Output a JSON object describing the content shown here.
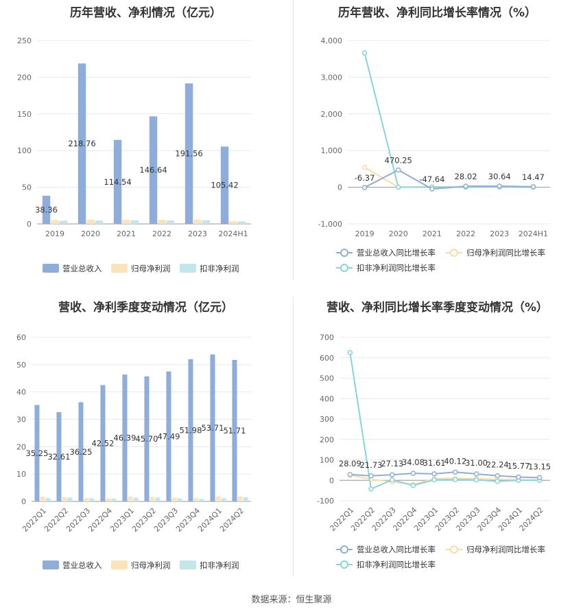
{
  "source_label": "数据来源：恒生聚源",
  "colors": {
    "revenue": "#8EADDB",
    "net_profit": "#FCE3B8",
    "deducted_profit": "#C1E7EC",
    "rev_growth_line": "#8EADDB",
    "np_growth_line": "#FCDCA5",
    "dp_growth_line": "#85D5DD"
  },
  "chart_data": [
    {
      "type": "bar",
      "title": "历年营收、净利情况（亿元）",
      "categories": [
        "2019",
        "2020",
        "2021",
        "2022",
        "2023",
        "2024H1"
      ],
      "ylim": [
        0,
        250
      ],
      "yticks": [
        "0",
        "50",
        "100",
        "150",
        "200",
        "250"
      ],
      "grid": true,
      "legend_position": "bottom",
      "series": [
        {
          "name": "营业总收入",
          "values": [
            38.36,
            218.76,
            114.54,
            146.64,
            191.56,
            105.42
          ],
          "labels": [
            "38.36",
            "218.76",
            "114.54",
            "146.64",
            "191.56",
            "105.42"
          ]
        },
        {
          "name": "归母净利润",
          "values": [
            5.2,
            5.8,
            5.6,
            5.7,
            5.9,
            3.8
          ]
        },
        {
          "name": "扣非净利润",
          "values": [
            4.4,
            4.6,
            5.0,
            4.8,
            5.0,
            3.4
          ]
        }
      ]
    },
    {
      "type": "line",
      "title": "历年营收、净利同比增长率情况（%）",
      "categories": [
        "2019",
        "2020",
        "2021",
        "2022",
        "2023",
        "2024H1"
      ],
      "ylim": [
        -1000,
        4000
      ],
      "yticks": [
        "-1,000",
        "0",
        "1,000",
        "2,000",
        "3,000",
        "4,000"
      ],
      "grid": true,
      "legend_position": "bottom",
      "series": [
        {
          "name": "营业总收入同比增长率",
          "values": [
            -6.37,
            470.25,
            -47.64,
            28.02,
            30.64,
            14.47
          ],
          "labels": [
            "-6.37",
            "470.25",
            "-47.64",
            "28.02",
            "30.64",
            "14.47"
          ]
        },
        {
          "name": "归母净利润同比增长率",
          "values": [
            540,
            5,
            8,
            6,
            12,
            3
          ]
        },
        {
          "name": "扣非净利润同比增长率",
          "values": [
            3660,
            3,
            5,
            4,
            10,
            2
          ]
        }
      ]
    },
    {
      "type": "bar",
      "title": "营收、净利季度变动情况（亿元）",
      "categories": [
        "2022Q1",
        "2022Q2",
        "2022Q3",
        "2022Q4",
        "2023Q1",
        "2023Q2",
        "2023Q3",
        "2023Q4",
        "2024Q1",
        "2024Q2"
      ],
      "ylim": [
        0,
        60
      ],
      "yticks": [
        "0",
        "10",
        "20",
        "30",
        "40",
        "50",
        "60"
      ],
      "grid": true,
      "legend_position": "bottom",
      "series": [
        {
          "name": "营业总收入",
          "values": [
            35.25,
            32.61,
            36.25,
            42.52,
            46.39,
            45.7,
            47.49,
            51.98,
            53.71,
            51.71
          ],
          "labels": [
            "35.25",
            "32.61",
            "36.25",
            "42.52",
            "46.39",
            "45.70",
            "47.49",
            "51.98",
            "53.71",
            "51.71"
          ]
        },
        {
          "name": "归母净利润",
          "values": [
            1.7,
            1.5,
            1.2,
            1.1,
            1.8,
            1.6,
            1.3,
            1.2,
            1.9,
            1.8
          ]
        },
        {
          "name": "扣非净利润",
          "values": [
            1.2,
            1.4,
            1.1,
            1.0,
            1.3,
            1.4,
            1.1,
            0.9,
            1.2,
            1.5
          ]
        }
      ]
    },
    {
      "type": "line",
      "title": "营收、净利同比增长率季度变动情况（%）",
      "categories": [
        "2022Q1",
        "2022Q2",
        "2022Q3",
        "2022Q4",
        "2023Q1",
        "2023Q2",
        "2023Q3",
        "2023Q4",
        "2024Q1",
        "2024Q2"
      ],
      "ylim": [
        -100,
        700
      ],
      "yticks": [
        "-100",
        "0",
        "100",
        "200",
        "300",
        "400",
        "500",
        "600",
        "700"
      ],
      "grid": true,
      "legend_position": "bottom",
      "series": [
        {
          "name": "营业总收入同比增长率",
          "values": [
            28.09,
            21.73,
            27.13,
            34.08,
            31.61,
            40.12,
            31.0,
            22.24,
            15.77,
            13.15
          ],
          "labels": [
            "28.09",
            "21.73",
            "27.13",
            "34.08",
            "31.61",
            "40.12",
            "31.00",
            "22.24",
            "15.77",
            "13.15"
          ]
        },
        {
          "name": "归母净利润同比增长率",
          "values": [
            25,
            5,
            -8,
            -20,
            8,
            10,
            8,
            5,
            3,
            2
          ]
        },
        {
          "name": "扣非净利润同比增长率",
          "values": [
            625,
            -42,
            2,
            -25,
            2,
            3,
            2,
            -5,
            0,
            0
          ]
        }
      ]
    }
  ]
}
